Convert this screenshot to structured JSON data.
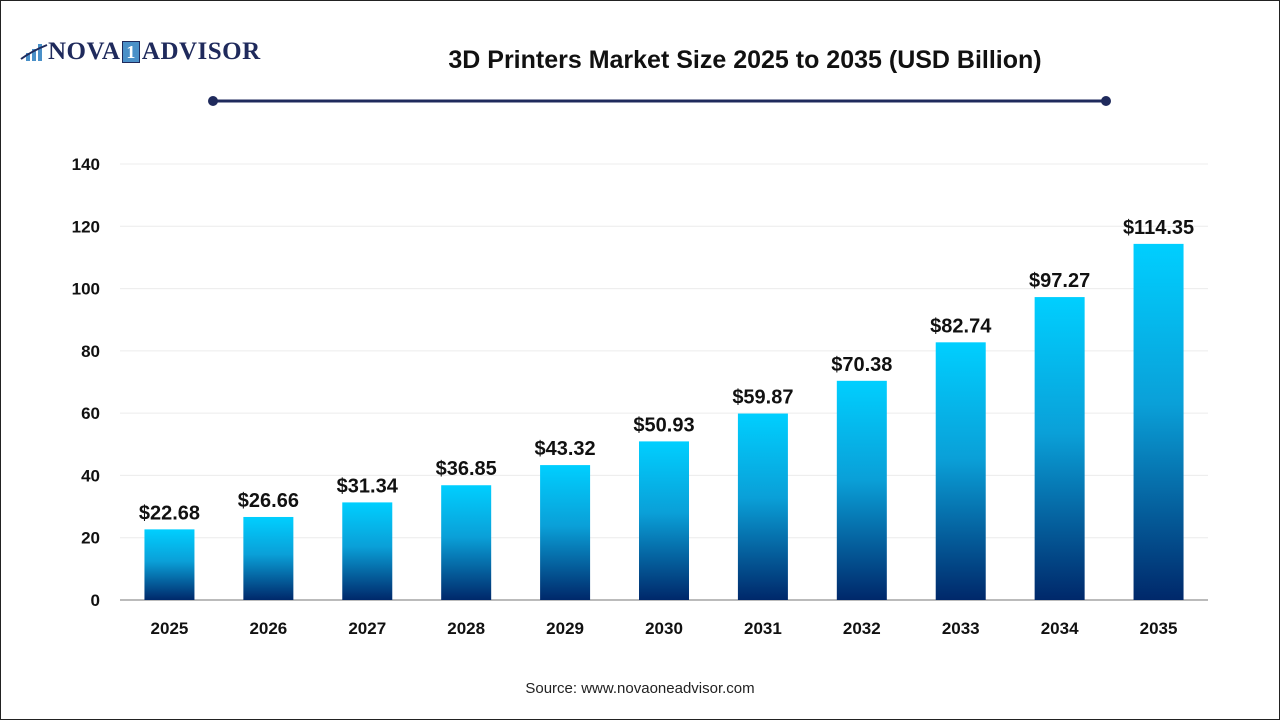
{
  "logo": {
    "text_left": "NOVA",
    "text_mark": "1",
    "text_right": "ADVISOR"
  },
  "colors": {
    "bar_top": "#00cfff",
    "bar_bottom": "#00286a",
    "title_line": "#1f2a5c"
  },
  "source": "Source: www.novaoneadvisor.com",
  "chart_data": {
    "type": "bar",
    "title": "3D Printers Market Size 2025 to 2035  (USD Billion)",
    "xlabel": "",
    "ylabel": "",
    "categories": [
      "2025",
      "2026",
      "2027",
      "2028",
      "2029",
      "2030",
      "2031",
      "2032",
      "2033",
      "2034",
      "2035"
    ],
    "values": [
      22.68,
      26.66,
      31.34,
      36.85,
      43.32,
      50.93,
      59.87,
      70.38,
      82.74,
      97.27,
      114.35
    ],
    "data_labels": [
      "$22.68",
      "$26.66",
      "$31.34",
      "$36.85",
      "$43.32",
      "$50.93",
      "$59.87",
      "$70.38",
      "$82.74",
      "$97.27",
      "$114.35"
    ],
    "ylim": [
      0,
      140
    ],
    "yticks": [
      0,
      20,
      40,
      60,
      80,
      100,
      120,
      140
    ],
    "grid": true,
    "legend": "none"
  }
}
